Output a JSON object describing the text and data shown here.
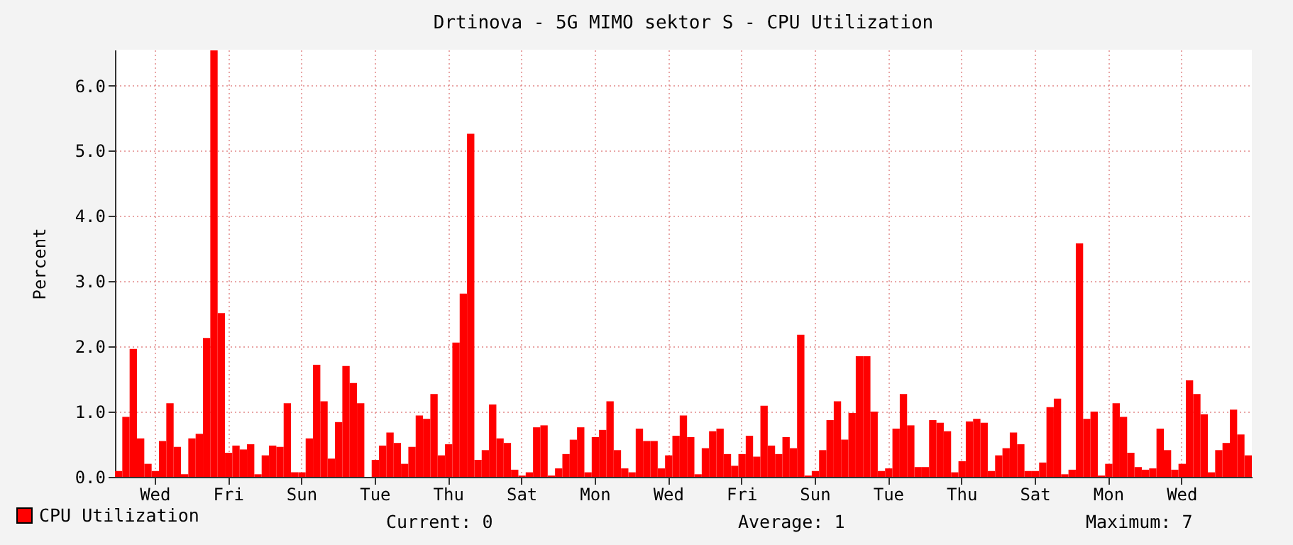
{
  "chart_data": {
    "type": "bar",
    "title": "Drtinova - 5G MIMO sektor S - CPU Utilization",
    "ylabel": "Percent",
    "categories": [
      null,
      null,
      null,
      null,
      null,
      "Wed",
      null,
      null,
      null,
      null,
      null,
      null,
      null,
      null,
      null,
      "Fri",
      null,
      null,
      null,
      null,
      null,
      null,
      null,
      null,
      null,
      "Sun",
      null,
      null,
      null,
      null,
      null,
      null,
      null,
      null,
      null,
      "Tue",
      null,
      null,
      null,
      null,
      null,
      null,
      null,
      null,
      null,
      "Thu",
      null,
      null,
      null,
      null,
      null,
      null,
      null,
      null,
      null,
      "Sat",
      null,
      null,
      null,
      null,
      null,
      null,
      null,
      null,
      null,
      "Mon",
      null,
      null,
      null,
      null,
      null,
      null,
      null,
      null,
      null,
      "Wed",
      null,
      null,
      null,
      null,
      null,
      null,
      null,
      null,
      null,
      "Fri",
      null,
      null,
      null,
      null,
      null,
      null,
      null,
      null,
      null,
      "Sun",
      null,
      null,
      null,
      null,
      null,
      null,
      null,
      null,
      null,
      "Tue",
      null,
      null,
      null,
      null,
      null,
      null,
      null,
      null,
      null,
      "Thu",
      null,
      null,
      null,
      null,
      null,
      null,
      null,
      null,
      null,
      "Sat",
      null,
      null,
      null,
      null,
      null,
      null,
      null,
      null,
      null,
      "Mon",
      null,
      null,
      null,
      null,
      null,
      null,
      null,
      null,
      null,
      "Wed",
      null,
      null,
      null,
      null,
      null,
      null,
      null,
      null,
      null
    ],
    "series": [
      {
        "name": "CPU Utilization",
        "color": "#ff0000",
        "values": [
          0.09,
          0.92,
          1.96,
          0.59,
          0.2,
          0.09,
          0.55,
          1.13,
          0.46,
          0.04,
          0.59,
          0.66,
          2.13,
          6.54,
          2.51,
          0.37,
          0.48,
          0.42,
          0.5,
          0.04,
          0.33,
          0.48,
          0.46,
          1.13,
          0.07,
          0.07,
          0.59,
          1.72,
          1.16,
          0.28,
          0.84,
          1.7,
          1.44,
          1.13,
          0,
          0.26,
          0.48,
          0.68,
          0.52,
          0.2,
          0.46,
          0.94,
          0.89,
          1.27,
          0.33,
          0.5,
          2.06,
          2.81,
          5.26,
          0.26,
          0.41,
          1.11,
          0.59,
          0.52,
          0.11,
          0.02,
          0.07,
          0.76,
          0.79,
          0.02,
          0.13,
          0.35,
          0.57,
          0.76,
          0.07,
          0.61,
          0.72,
          1.16,
          0.41,
          0.13,
          0.07,
          0.74,
          0.55,
          0.55,
          0.13,
          0.33,
          0.63,
          0.94,
          0.61,
          0.04,
          0.44,
          0.7,
          0.74,
          0.35,
          0.17,
          0.35,
          0.63,
          0.31,
          1.09,
          0.48,
          0.35,
          0.61,
          0.44,
          2.18,
          0.02,
          0.09,
          0.41,
          0.87,
          1.16,
          0.57,
          0.98,
          1.85,
          1.85,
          1,
          0.09,
          0.13,
          0.74,
          1.27,
          0.79,
          0.15,
          0.15,
          0.87,
          0.83,
          0.7,
          0.07,
          0.24,
          0.85,
          0.89,
          0.83,
          0.09,
          0.33,
          0.44,
          0.68,
          0.5,
          0.09,
          0.09,
          0.22,
          1.07,
          1.2,
          0.04,
          0.11,
          3.58,
          0.89,
          1,
          0.02,
          0.2,
          1.13,
          0.92,
          0.37,
          0.15,
          0.11,
          0.13,
          0.74,
          0.41,
          0.11,
          0.2,
          1.48,
          1.27,
          0.96,
          0.07,
          0.41,
          0.52,
          1.03,
          0.65,
          0.33
        ]
      }
    ],
    "ylim": [
      0,
      6.55
    ],
    "yticks": [
      {
        "value": 0,
        "label": "0.0"
      },
      {
        "value": 1,
        "label": "1.0"
      },
      {
        "value": 2,
        "label": "2.0"
      },
      {
        "value": 3,
        "label": "3.0"
      },
      {
        "value": 4,
        "label": "4.0"
      },
      {
        "value": 5,
        "label": "5.0"
      },
      {
        "value": 6,
        "label": "6.0"
      }
    ],
    "grid": true,
    "legend": "bottom left",
    "annotations": [
      "Current: 0",
      "Average: 1",
      "Maximum: 7"
    ]
  }
}
